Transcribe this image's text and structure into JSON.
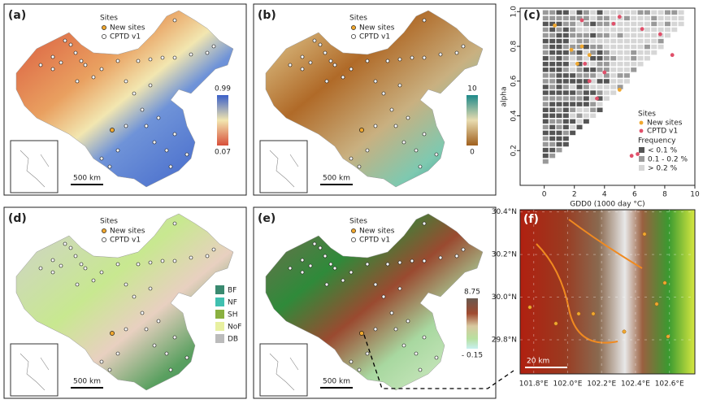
{
  "maps": [
    {
      "label": "(a)",
      "legend_title": "Sites",
      "legend_items": [
        "New sites",
        "CPTD v1"
      ],
      "colorbar_labels": [
        "0.99",
        "0.07"
      ],
      "scale_bar": "500 km"
    },
    {
      "label": "(b)",
      "legend_title": "Sites",
      "legend_items": [
        "New sites",
        "CPTD v1"
      ],
      "colorbar_labels": [
        "10",
        "0"
      ],
      "scale_bar": "500 km"
    },
    {
      "label": "(d)",
      "legend_title": "Sites",
      "legend_items": [
        "New sites",
        "CPTD v1"
      ],
      "classes": [
        "BF",
        "NF",
        "SH",
        "NoF",
        "DB"
      ],
      "scale_bar": "500 km"
    },
    {
      "label": "(e)",
      "legend_title": "Sites",
      "legend_items": [
        "New sites",
        "CPTD v1"
      ],
      "colorbar_labels": [
        "8.75",
        "- 0.15"
      ],
      "scale_bar": "500 km"
    }
  ],
  "chart_data": {
    "type": "scatter",
    "label": "(c)",
    "x_label": "GDD0 (1000 day °C)",
    "y_label": "alpha",
    "xlim": [
      -1.6,
      10
    ],
    "ylim": [
      0,
      1.02
    ],
    "xticks": [
      0,
      2,
      4,
      6,
      8,
      10
    ],
    "yticks": [
      0.2,
      0.4,
      0.6,
      0.8,
      {
        "value": 1,
        "label": "1.0"
      }
    ],
    "legend_title": "Sites",
    "series": [
      {
        "name": "New sites",
        "color": "#f0a830",
        "x": [
          0.7,
          1.8,
          2.5,
          3,
          2.2,
          5
        ],
        "values": [
          0.92,
          0.78,
          0.8,
          0.75,
          0.7,
          0.55
        ]
      },
      {
        "name": "CPTD v1",
        "color": "#e0506a",
        "x": [
          2.5,
          4.6,
          5,
          6.5,
          7.7,
          8.5,
          2.7,
          3,
          3.5,
          4,
          5.8,
          6.2
        ],
        "values": [
          0.95,
          0.93,
          0.97,
          0.9,
          0.87,
          0.75,
          0.7,
          0.6,
          0.5,
          0.65,
          0.17,
          0.18
        ]
      }
    ],
    "frequency_title": "Frequency",
    "frequency_levels": [
      "< 0.1 %",
      "0.1 - 0.2 %",
      "> 0.2 %"
    ],
    "frequency_colors": [
      "#555555",
      "#999999",
      "#d6d6d6"
    ]
  },
  "inset": {
    "label": "(f)",
    "lat_lim": [
      29.64,
      30.41
    ],
    "lon_lim": [
      101.72,
      102.75
    ],
    "lat_ticks": [
      {
        "value": 30.4,
        "label": "30.4°N"
      },
      {
        "value": 30.2,
        "label": "30.2°N"
      },
      {
        "value": 30.0,
        "label": "30.0°N"
      },
      {
        "value": 29.8,
        "label": "29.8°N"
      }
    ],
    "lon_ticks": [
      {
        "value": 101.8,
        "label": "101.8°E"
      },
      {
        "value": 102.0,
        "label": "102.0°E"
      },
      {
        "value": 102.2,
        "label": "102.2°E"
      },
      {
        "value": 102.4,
        "label": "102.4°E"
      },
      {
        "value": 102.6,
        "label": "102.6°E"
      }
    ],
    "scale_bar": "20 km"
  }
}
